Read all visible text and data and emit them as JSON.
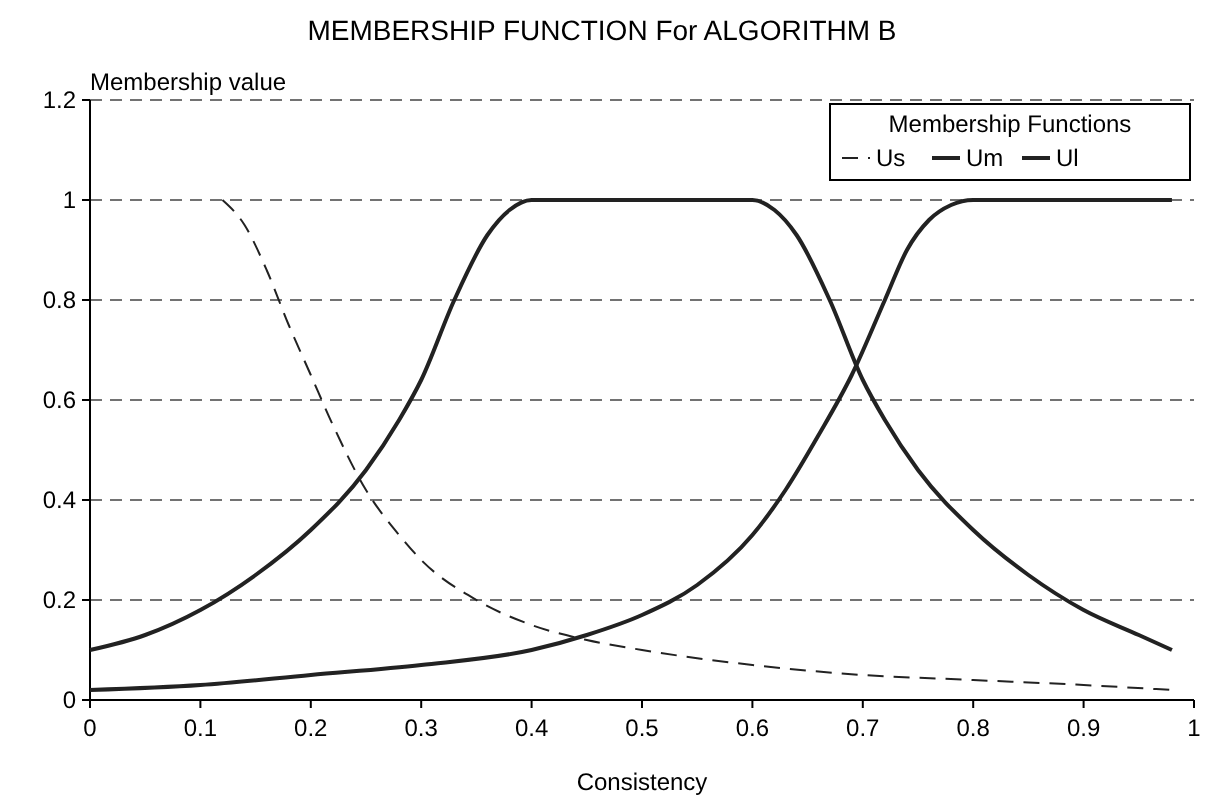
{
  "chart_data": {
    "type": "line",
    "title": "MEMBERSHIP FUNCTION For ALGORITHM B",
    "xlabel": "Consistency",
    "ylabel": "Membership value",
    "legend_title": "Membership Functions",
    "xlim": [
      0,
      1
    ],
    "ylim": [
      0,
      1.2
    ],
    "xticks": [
      0,
      0.1,
      0.2,
      0.3,
      0.4,
      0.5,
      0.6,
      0.7,
      0.8,
      0.9,
      1
    ],
    "yticks": [
      0,
      0.2,
      0.4,
      0.6,
      0.8,
      1,
      1.2
    ],
    "grid": "y",
    "legend": "top right",
    "series": [
      {
        "name": "Us",
        "color": "#222222",
        "line_style": "dashed",
        "x": [
          0.12,
          0.14,
          0.16,
          0.18,
          0.2,
          0.22,
          0.25,
          0.28,
          0.3,
          0.35,
          0.4,
          0.45,
          0.5,
          0.6,
          0.7,
          0.8,
          0.9,
          0.98
        ],
        "values": [
          1,
          0.95,
          0.86,
          0.75,
          0.65,
          0.55,
          0.42,
          0.33,
          0.28,
          0.2,
          0.15,
          0.12,
          0.1,
          0.07,
          0.05,
          0.04,
          0.03,
          0.02
        ]
      },
      {
        "name": "Um",
        "color": "#222222",
        "line_style": "solid",
        "x": [
          0,
          0.05,
          0.1,
          0.15,
          0.2,
          0.25,
          0.28,
          0.3,
          0.33,
          0.36,
          0.38,
          0.4,
          0.6,
          0.62,
          0.64,
          0.67,
          0.7,
          0.72,
          0.75,
          0.8,
          0.85,
          0.9,
          0.95,
          0.98
        ],
        "values": [
          0.1,
          0.13,
          0.18,
          0.25,
          0.34,
          0.46,
          0.56,
          0.64,
          0.8,
          0.93,
          0.98,
          1,
          1,
          0.98,
          0.93,
          0.8,
          0.64,
          0.56,
          0.46,
          0.34,
          0.25,
          0.18,
          0.13,
          0.1
        ]
      },
      {
        "name": "Ul",
        "color": "#222222",
        "line_style": "solid",
        "x": [
          0,
          0.1,
          0.2,
          0.3,
          0.4,
          0.45,
          0.5,
          0.55,
          0.6,
          0.63,
          0.66,
          0.69,
          0.72,
          0.74,
          0.76,
          0.78,
          0.8,
          0.98
        ],
        "values": [
          0.02,
          0.03,
          0.05,
          0.07,
          0.1,
          0.13,
          0.17,
          0.23,
          0.33,
          0.42,
          0.53,
          0.65,
          0.8,
          0.9,
          0.96,
          0.99,
          1,
          1
        ]
      }
    ]
  }
}
